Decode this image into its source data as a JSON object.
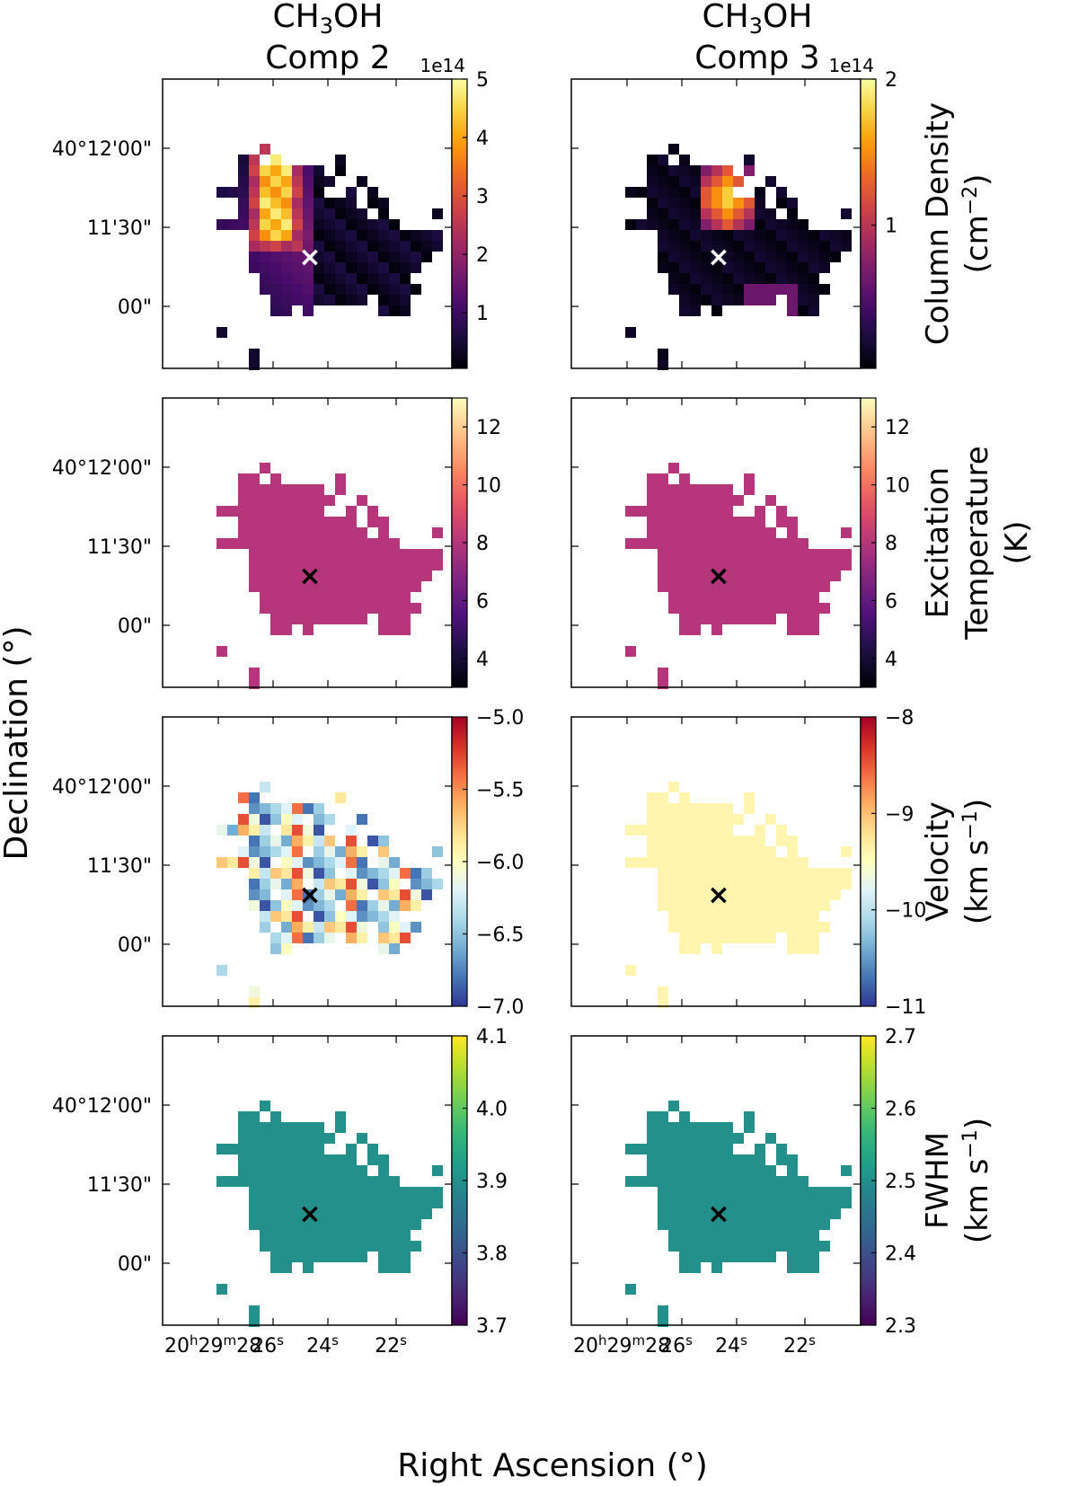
{
  "figure": {
    "xlabel": "Right Ascension (°)",
    "ylabel": "Declination (°)",
    "marker": "×"
  },
  "columns": [
    {
      "title_mol": "CH",
      "title_sub": "3",
      "title_mol2": "OH",
      "title_comp": "Comp 2"
    },
    {
      "title_mol": "CH",
      "title_sub": "3",
      "title_mol2": "OH",
      "title_comp": "Comp 3"
    }
  ],
  "y_ticks": [
    "40°12'00\"",
    "11'30\"",
    "00\""
  ],
  "x_ticks": [
    {
      "h": "20",
      "hu": "h",
      "m": "29",
      "mu": "m",
      "s": "28",
      "su": "s"
    },
    {
      "s": "26",
      "su": "s"
    },
    {
      "s": "24",
      "su": "s"
    },
    {
      "s": "22",
      "su": "s"
    }
  ],
  "rows": [
    {
      "quantity": "Column Density",
      "unit_line": "(cm",
      "unit_sup": "−2",
      "unit_end": ")",
      "cmap": "inferno",
      "col2": {
        "range": [
          0.05,
          5.0
        ],
        "ticks": [
          "1",
          "2",
          "3",
          "4",
          "5"
        ],
        "exponent": "1e14"
      },
      "col3": {
        "range": [
          0.02,
          2.0
        ],
        "ticks": [
          "1",
          "2"
        ],
        "exponent": "1e14"
      }
    },
    {
      "quantity": "Excitation",
      "quantity2": "Temperature",
      "unit_line": "(K)",
      "cmap": "magma",
      "col2": {
        "range": [
          3,
          13
        ],
        "ticks": [
          "4",
          "6",
          "8",
          "10",
          "12"
        ],
        "value": 8.0
      },
      "col3": {
        "range": [
          3,
          13
        ],
        "ticks": [
          "4",
          "6",
          "8",
          "10",
          "12"
        ],
        "value": 8.0
      }
    },
    {
      "quantity": "Velocity",
      "unit_line": "(km s",
      "unit_sup": "−1",
      "unit_end": ")",
      "cmap": "RdYlBu_r",
      "col2": {
        "range": [
          -7.0,
          -5.0
        ],
        "ticks": [
          "−7.0",
          "−6.5",
          "−6.0",
          "−5.5",
          "−5.0"
        ]
      },
      "col3": {
        "range": [
          -11,
          -8
        ],
        "ticks": [
          "−11",
          "−10",
          "−9",
          "−8"
        ],
        "value": -9.4
      }
    },
    {
      "quantity": "FWHM",
      "unit_line": "(km s",
      "unit_sup": "−1",
      "unit_end": ")",
      "cmap": "viridis",
      "col2": {
        "range": [
          3.7,
          4.1
        ],
        "ticks": [
          "3.7",
          "3.8",
          "3.9",
          "4.0",
          "4.1"
        ],
        "value": 3.9
      },
      "col3": {
        "range": [
          2.3,
          2.7
        ],
        "ticks": [
          "2.3",
          "2.4",
          "2.5",
          "2.6",
          "2.7"
        ],
        "value": 2.5
      }
    }
  ],
  "colors": {
    "cross_dark": "#000000",
    "cross_light": "#ffffff"
  }
}
